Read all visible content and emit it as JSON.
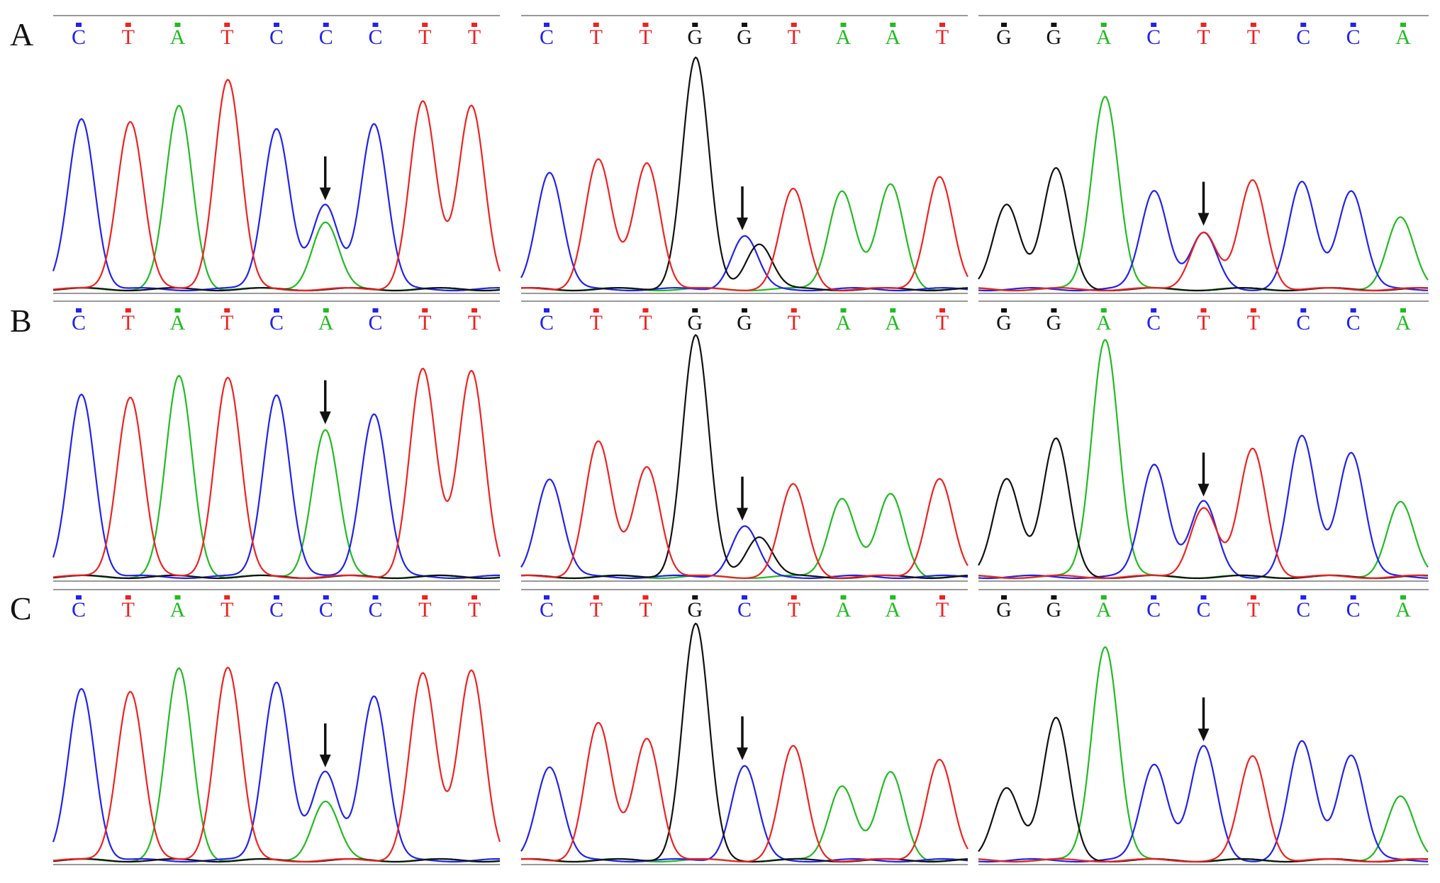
{
  "colors": {
    "A": "#22bb22",
    "C": "#2222ee",
    "G": "#111111",
    "T": "#ee2222",
    "baseline": "#999999",
    "arrow": "#111111"
  },
  "rows": [
    {
      "label": "A"
    },
    {
      "label": "B"
    },
    {
      "label": "C"
    }
  ],
  "chart_data": [
    {
      "type": "line",
      "row": "A",
      "panel": 1,
      "bases": [
        "C",
        "T",
        "A",
        "T",
        "C",
        "C",
        "C",
        "T",
        "T"
      ],
      "peaks": [
        {
          "base": "C",
          "pos": 0,
          "h": 0.74
        },
        {
          "base": "T",
          "pos": 1,
          "h": 0.73
        },
        {
          "base": "A",
          "pos": 2,
          "h": 0.79
        },
        {
          "base": "T",
          "pos": 3,
          "h": 0.91
        },
        {
          "base": "C",
          "pos": 4,
          "h": 0.7
        },
        {
          "base": "C",
          "pos": 5,
          "h": 0.36
        },
        {
          "base": "A",
          "pos": 5,
          "h": 0.29
        },
        {
          "base": "C",
          "pos": 6,
          "h": 0.72
        },
        {
          "base": "T",
          "pos": 7,
          "h": 0.81
        },
        {
          "base": "T",
          "pos": 8,
          "h": 0.8
        }
      ],
      "arrow_pos": 5
    },
    {
      "type": "line",
      "row": "A",
      "panel": 2,
      "bases": [
        "C",
        "T",
        "T",
        "G",
        "G",
        "T",
        "A",
        "A",
        "T"
      ],
      "peaks": [
        {
          "base": "C",
          "pos": 0,
          "h": 0.51
        },
        {
          "base": "T",
          "pos": 1,
          "h": 0.56
        },
        {
          "base": "T",
          "pos": 2,
          "h": 0.55
        },
        {
          "base": "G",
          "pos": 3,
          "h": 1.0
        },
        {
          "base": "C",
          "pos": 4,
          "h": 0.23
        },
        {
          "base": "G",
          "pos": 4.3,
          "h": 0.2
        },
        {
          "base": "T",
          "pos": 5,
          "h": 0.43
        },
        {
          "base": "A",
          "pos": 6,
          "h": 0.43
        },
        {
          "base": "A",
          "pos": 7,
          "h": 0.45
        },
        {
          "base": "T",
          "pos": 8,
          "h": 0.49
        }
      ],
      "arrow_pos": 4
    },
    {
      "type": "line",
      "row": "A",
      "panel": 3,
      "bases": [
        "G",
        "G",
        "A",
        "C",
        "T",
        "T",
        "C",
        "C",
        "A"
      ],
      "peaks": [
        {
          "base": "G",
          "pos": 0,
          "h": 0.37
        },
        {
          "base": "G",
          "pos": 1,
          "h": 0.52
        },
        {
          "base": "A",
          "pos": 2,
          "h": 0.84
        },
        {
          "base": "C",
          "pos": 3,
          "h": 0.43
        },
        {
          "base": "T",
          "pos": 4,
          "h": 0.25
        },
        {
          "base": "C",
          "pos": 4,
          "h": 0.24
        },
        {
          "base": "T",
          "pos": 5,
          "h": 0.47
        },
        {
          "base": "C",
          "pos": 6,
          "h": 0.46
        },
        {
          "base": "C",
          "pos": 7,
          "h": 0.43
        },
        {
          "base": "A",
          "pos": 8,
          "h": 0.31
        }
      ],
      "arrow_pos": 4
    },
    {
      "type": "line",
      "row": "B",
      "panel": 1,
      "bases": [
        "C",
        "T",
        "A",
        "T",
        "C",
        "A",
        "C",
        "T",
        "T"
      ],
      "peaks": [
        {
          "base": "C",
          "pos": 0,
          "h": 0.76
        },
        {
          "base": "T",
          "pos": 1,
          "h": 0.75
        },
        {
          "base": "A",
          "pos": 2,
          "h": 0.83
        },
        {
          "base": "T",
          "pos": 3,
          "h": 0.83
        },
        {
          "base": "C",
          "pos": 4,
          "h": 0.76
        },
        {
          "base": "A",
          "pos": 5,
          "h": 0.61
        },
        {
          "base": "C",
          "pos": 6,
          "h": 0.68
        },
        {
          "base": "T",
          "pos": 7,
          "h": 0.86
        },
        {
          "base": "T",
          "pos": 8,
          "h": 0.86
        }
      ],
      "arrow_pos": 5
    },
    {
      "type": "line",
      "row": "B",
      "panel": 2,
      "bases": [
        "C",
        "T",
        "T",
        "G",
        "G",
        "T",
        "A",
        "A",
        "T"
      ],
      "peaks": [
        {
          "base": "C",
          "pos": 0,
          "h": 0.41
        },
        {
          "base": "T",
          "pos": 1,
          "h": 0.56
        },
        {
          "base": "T",
          "pos": 2,
          "h": 0.46
        },
        {
          "base": "G",
          "pos": 3,
          "h": 1.0
        },
        {
          "base": "C",
          "pos": 4,
          "h": 0.21
        },
        {
          "base": "G",
          "pos": 4.3,
          "h": 0.17
        },
        {
          "base": "T",
          "pos": 5,
          "h": 0.38
        },
        {
          "base": "A",
          "pos": 6,
          "h": 0.33
        },
        {
          "base": "A",
          "pos": 7,
          "h": 0.34
        },
        {
          "base": "T",
          "pos": 8,
          "h": 0.41
        }
      ],
      "arrow_pos": 4
    },
    {
      "type": "line",
      "row": "B",
      "panel": 3,
      "bases": [
        "G",
        "G",
        "A",
        "C",
        "T",
        "T",
        "C",
        "C",
        "A"
      ],
      "peaks": [
        {
          "base": "G",
          "pos": 0,
          "h": 0.41
        },
        {
          "base": "G",
          "pos": 1,
          "h": 0.57
        },
        {
          "base": "A",
          "pos": 2,
          "h": 0.99
        },
        {
          "base": "C",
          "pos": 3,
          "h": 0.47
        },
        {
          "base": "C",
          "pos": 4,
          "h": 0.31
        },
        {
          "base": "T",
          "pos": 4,
          "h": 0.29
        },
        {
          "base": "T",
          "pos": 5,
          "h": 0.53
        },
        {
          "base": "C",
          "pos": 6,
          "h": 0.58
        },
        {
          "base": "C",
          "pos": 7,
          "h": 0.52
        },
        {
          "base": "A",
          "pos": 8,
          "h": 0.31
        }
      ],
      "arrow_pos": 4
    },
    {
      "type": "line",
      "row": "C",
      "panel": 1,
      "bases": [
        "C",
        "T",
        "A",
        "T",
        "C",
        "C",
        "C",
        "T",
        "T"
      ],
      "peaks": [
        {
          "base": "C",
          "pos": 0,
          "h": 0.73
        },
        {
          "base": "T",
          "pos": 1,
          "h": 0.72
        },
        {
          "base": "A",
          "pos": 2,
          "h": 0.81
        },
        {
          "base": "T",
          "pos": 3,
          "h": 0.82
        },
        {
          "base": "C",
          "pos": 4,
          "h": 0.76
        },
        {
          "base": "C",
          "pos": 5,
          "h": 0.37
        },
        {
          "base": "A",
          "pos": 5,
          "h": 0.25
        },
        {
          "base": "C",
          "pos": 6,
          "h": 0.7
        },
        {
          "base": "T",
          "pos": 7,
          "h": 0.79
        },
        {
          "base": "T",
          "pos": 8,
          "h": 0.81
        }
      ],
      "arrow_pos": 5
    },
    {
      "type": "line",
      "row": "C",
      "panel": 2,
      "bases": [
        "C",
        "T",
        "T",
        "G",
        "C",
        "T",
        "A",
        "A",
        "T"
      ],
      "peaks": [
        {
          "base": "C",
          "pos": 0,
          "h": 0.4
        },
        {
          "base": "T",
          "pos": 1,
          "h": 0.58
        },
        {
          "base": "T",
          "pos": 2,
          "h": 0.52
        },
        {
          "base": "G",
          "pos": 3,
          "h": 1.0
        },
        {
          "base": "C",
          "pos": 4,
          "h": 0.4
        },
        {
          "base": "T",
          "pos": 5,
          "h": 0.48
        },
        {
          "base": "A",
          "pos": 6,
          "h": 0.32
        },
        {
          "base": "A",
          "pos": 7,
          "h": 0.37
        },
        {
          "base": "T",
          "pos": 8,
          "h": 0.43
        }
      ],
      "arrow_pos": 4
    },
    {
      "type": "line",
      "row": "C",
      "panel": 3,
      "bases": [
        "G",
        "G",
        "A",
        "C",
        "C",
        "T",
        "C",
        "C",
        "A"
      ],
      "peaks": [
        {
          "base": "G",
          "pos": 0,
          "h": 0.31
        },
        {
          "base": "G",
          "pos": 1,
          "h": 0.6
        },
        {
          "base": "A",
          "pos": 2,
          "h": 0.91
        },
        {
          "base": "C",
          "pos": 3,
          "h": 0.41
        },
        {
          "base": "C",
          "pos": 4,
          "h": 0.48
        },
        {
          "base": "T",
          "pos": 5,
          "h": 0.44
        },
        {
          "base": "C",
          "pos": 6,
          "h": 0.5
        },
        {
          "base": "C",
          "pos": 7,
          "h": 0.45
        },
        {
          "base": "A",
          "pos": 8,
          "h": 0.27
        }
      ],
      "arrow_pos": 4
    }
  ]
}
